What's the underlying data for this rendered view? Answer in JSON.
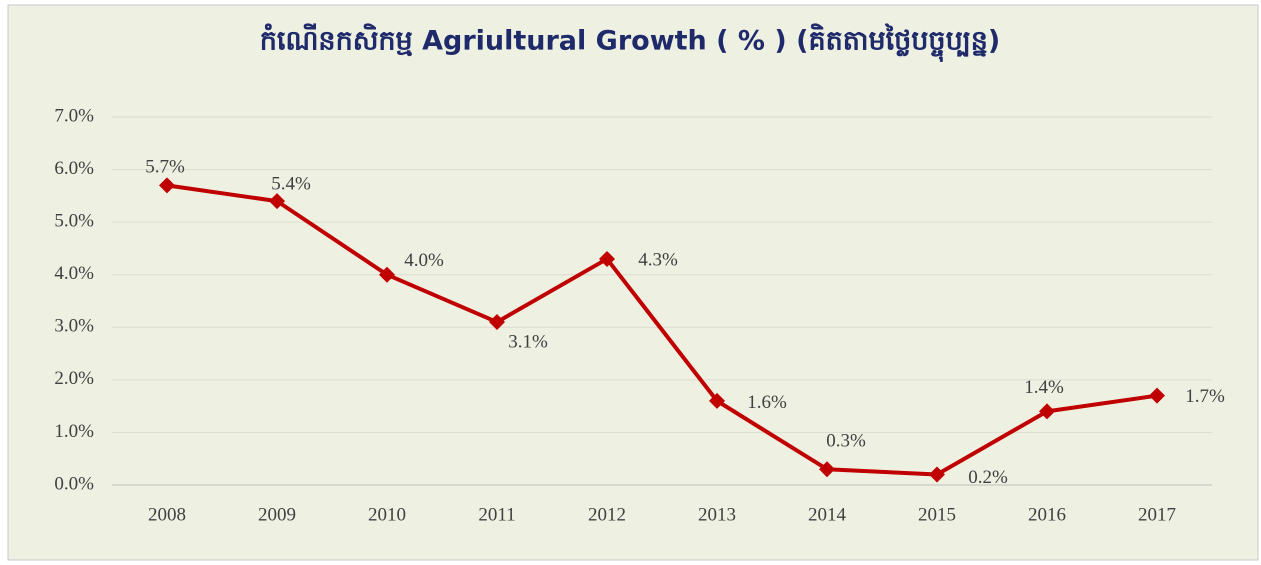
{
  "chart_data": {
    "type": "line",
    "title": "កំណើនកសិកម្ម Agriultural Growth ( % ) (គិតតាមថ្លៃបច្ចុប្បន្ន)",
    "categories": [
      "2008",
      "2009",
      "2010",
      "2011",
      "2012",
      "2013",
      "2014",
      "2015",
      "2016",
      "2017"
    ],
    "series": [
      {
        "name": "Agriultural Growth",
        "color": "#c00000",
        "values": [
          5.7,
          5.4,
          4.0,
          3.1,
          4.3,
          1.6,
          0.3,
          0.2,
          1.4,
          1.7
        ],
        "value_labels": [
          "5.7%",
          "5.4%",
          "4.0%",
          "3.1%",
          "4.3%",
          "1.6%",
          "0.3%",
          "0.2%",
          "1.4%",
          "1.7%"
        ]
      }
    ],
    "ylim": [
      0,
      7
    ],
    "yticks": [
      {
        "value": 0,
        "label": "0.0%"
      },
      {
        "value": 1,
        "label": "1.0%"
      },
      {
        "value": 2,
        "label": "2.0%"
      },
      {
        "value": 3,
        "label": "3.0%"
      },
      {
        "value": 4,
        "label": "4.0%"
      },
      {
        "value": 5,
        "label": "5.0%"
      },
      {
        "value": 6,
        "label": "6.0%"
      },
      {
        "value": 7,
        "label": "7.0%"
      }
    ],
    "grid": true
  }
}
